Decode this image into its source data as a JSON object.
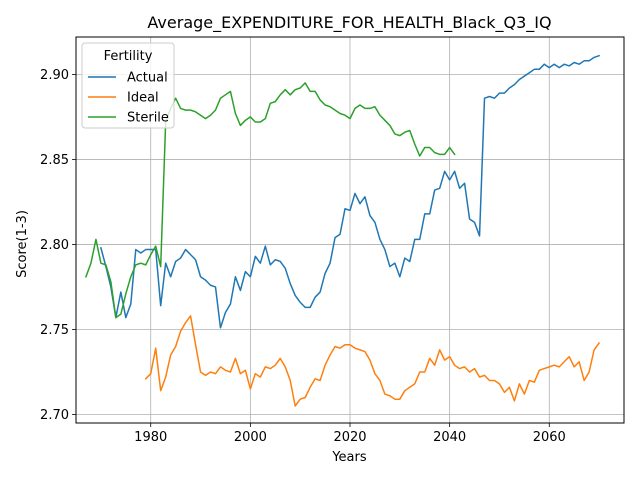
{
  "chart_data": {
    "type": "line",
    "title": "Average_EXPENDITURE_FOR_HEALTH_Black_Q3_IQ",
    "xlabel": "Years",
    "ylabel": "Score(1-3)",
    "xlim": [
      1965,
      2075
    ],
    "ylim": [
      2.695,
      2.922
    ],
    "x_ticks": [
      1980,
      2000,
      2020,
      2040,
      2060
    ],
    "y_ticks": [
      2.7,
      2.75,
      2.8,
      2.85,
      2.9
    ],
    "x_tick_labels": [
      "1980",
      "2000",
      "2020",
      "2040",
      "2060"
    ],
    "y_tick_labels": [
      "2.70",
      "2.75",
      "2.80",
      "2.85",
      "2.90"
    ],
    "grid": true,
    "legend": {
      "title": "Fertility",
      "position": "upper-left"
    },
    "series": [
      {
        "name": "Actual",
        "color": "#1f77b4",
        "x": [
          1970,
          1971,
          1972,
          1973,
          1974,
          1975,
          1976,
          1977,
          1978,
          1979,
          1980,
          1981,
          1982,
          1983,
          1984,
          1985,
          1986,
          1987,
          1988,
          1989,
          1990,
          1991,
          1992,
          1993,
          1994,
          1995,
          1996,
          1997,
          1998,
          1999,
          2000,
          2001,
          2002,
          2003,
          2004,
          2005,
          2006,
          2007,
          2008,
          2009,
          2010,
          2011,
          2012,
          2013,
          2014,
          2015,
          2016,
          2017,
          2018,
          2019,
          2020,
          2021,
          2022,
          2023,
          2024,
          2025,
          2026,
          2027,
          2028,
          2029,
          2030,
          2031,
          2032,
          2033,
          2034,
          2035,
          2036,
          2037,
          2038,
          2039,
          2040,
          2041,
          2042,
          2043,
          2044,
          2045,
          2046,
          2047,
          2048,
          2049,
          2050,
          2051,
          2052,
          2053,
          2054,
          2055,
          2056,
          2057,
          2058,
          2059,
          2060,
          2061,
          2062,
          2063,
          2064,
          2065,
          2066,
          2067,
          2068,
          2069,
          2070
        ],
        "values": [
          2.798,
          2.787,
          2.775,
          2.757,
          2.772,
          2.757,
          2.765,
          2.797,
          2.795,
          2.797,
          2.797,
          2.797,
          2.764,
          2.789,
          2.781,
          2.79,
          2.792,
          2.797,
          2.794,
          2.791,
          2.781,
          2.779,
          2.776,
          2.775,
          2.751,
          2.76,
          2.765,
          2.781,
          2.773,
          2.784,
          2.781,
          2.793,
          2.789,
          2.799,
          2.788,
          2.791,
          2.79,
          2.786,
          2.777,
          2.77,
          2.766,
          2.763,
          2.763,
          2.769,
          2.772,
          2.783,
          2.789,
          2.804,
          2.806,
          2.821,
          2.82,
          2.83,
          2.824,
          2.828,
          2.817,
          2.813,
          2.803,
          2.797,
          2.787,
          2.789,
          2.781,
          2.792,
          2.79,
          2.803,
          2.803,
          2.818,
          2.818,
          2.832,
          2.833,
          2.843,
          2.838,
          2.843,
          2.833,
          2.836,
          2.815,
          2.813,
          2.805,
          2.886,
          2.887,
          2.886,
          2.889,
          2.889,
          2.892,
          2.894,
          2.897,
          2.899,
          2.901,
          2.903,
          2.903,
          2.906,
          2.904,
          2.906,
          2.904,
          2.906,
          2.905,
          2.907,
          2.906,
          2.908,
          2.908,
          2.91,
          2.911
        ]
      },
      {
        "name": "Ideal",
        "color": "#ff7f0e",
        "x": [
          1979,
          1980,
          1981,
          1982,
          1983,
          1984,
          1985,
          1986,
          1987,
          1988,
          1989,
          1990,
          1991,
          1992,
          1993,
          1994,
          1995,
          1996,
          1997,
          1998,
          1999,
          2000,
          2001,
          2002,
          2003,
          2004,
          2005,
          2006,
          2007,
          2008,
          2009,
          2010,
          2011,
          2012,
          2013,
          2014,
          2015,
          2016,
          2017,
          2018,
          2019,
          2020,
          2021,
          2022,
          2023,
          2024,
          2025,
          2026,
          2027,
          2028,
          2029,
          2030,
          2031,
          2032,
          2033,
          2034,
          2035,
          2036,
          2037,
          2038,
          2039,
          2040,
          2041,
          2042,
          2043,
          2044,
          2045,
          2046,
          2047,
          2048,
          2049,
          2050,
          2051,
          2052,
          2053,
          2054,
          2055,
          2056,
          2057,
          2058,
          2059,
          2060,
          2061,
          2062,
          2063,
          2064,
          2065,
          2066,
          2067,
          2068,
          2069,
          2070
        ],
        "values": [
          2.721,
          2.724,
          2.739,
          2.714,
          2.722,
          2.735,
          2.74,
          2.749,
          2.754,
          2.758,
          2.741,
          2.725,
          2.723,
          2.725,
          2.724,
          2.728,
          2.726,
          2.725,
          2.733,
          2.724,
          2.726,
          2.715,
          2.724,
          2.722,
          2.728,
          2.727,
          2.729,
          2.733,
          2.728,
          2.72,
          2.705,
          2.709,
          2.71,
          2.716,
          2.721,
          2.72,
          2.729,
          2.735,
          2.74,
          2.739,
          2.741,
          2.741,
          2.739,
          2.738,
          2.737,
          2.732,
          2.724,
          2.72,
          2.712,
          2.711,
          2.709,
          2.709,
          2.714,
          2.716,
          2.718,
          2.725,
          2.725,
          2.733,
          2.729,
          2.738,
          2.732,
          2.734,
          2.729,
          2.727,
          2.728,
          2.725,
          2.727,
          2.722,
          2.723,
          2.72,
          2.72,
          2.718,
          2.713,
          2.716,
          2.708,
          2.718,
          2.712,
          2.72,
          2.719,
          2.726,
          2.727,
          2.728,
          2.729,
          2.728,
          2.731,
          2.734,
          2.728,
          2.731,
          2.72,
          2.725,
          2.738,
          2.742
        ]
      },
      {
        "name": "Sterile",
        "color": "#2ca02c",
        "x": [
          1967,
          1968,
          1969,
          1970,
          1971,
          1972,
          1973,
          1974,
          1975,
          1976,
          1977,
          1978,
          1979,
          1980,
          1981,
          1982,
          1983,
          1984,
          1985,
          1986,
          1987,
          1988,
          1989,
          1990,
          1991,
          1992,
          1993,
          1994,
          1995,
          1996,
          1997,
          1998,
          1999,
          2000,
          2001,
          2002,
          2003,
          2004,
          2005,
          2006,
          2007,
          2008,
          2009,
          2010,
          2011,
          2012,
          2013,
          2014,
          2015,
          2016,
          2017,
          2018,
          2019,
          2020,
          2021,
          2022,
          2023,
          2024,
          2025,
          2026,
          2027,
          2028,
          2029,
          2030,
          2031,
          2032,
          2033,
          2034,
          2035,
          2036,
          2037,
          2038,
          2039,
          2040,
          2041
        ],
        "values": [
          2.781,
          2.789,
          2.803,
          2.789,
          2.788,
          2.778,
          2.757,
          2.759,
          2.771,
          2.781,
          2.788,
          2.789,
          2.788,
          2.794,
          2.799,
          2.787,
          2.872,
          2.88,
          2.886,
          2.88,
          2.879,
          2.879,
          2.878,
          2.876,
          2.874,
          2.876,
          2.879,
          2.886,
          2.888,
          2.89,
          2.877,
          2.87,
          2.873,
          2.875,
          2.872,
          2.872,
          2.874,
          2.883,
          2.884,
          2.888,
          2.891,
          2.888,
          2.891,
          2.892,
          2.895,
          2.89,
          2.89,
          2.885,
          2.882,
          2.881,
          2.879,
          2.877,
          2.876,
          2.874,
          2.88,
          2.882,
          2.88,
          2.88,
          2.881,
          2.876,
          2.873,
          2.87,
          2.865,
          2.864,
          2.866,
          2.867,
          2.859,
          2.852,
          2.857,
          2.857,
          2.854,
          2.853,
          2.853,
          2.857,
          2.853
        ]
      }
    ]
  }
}
